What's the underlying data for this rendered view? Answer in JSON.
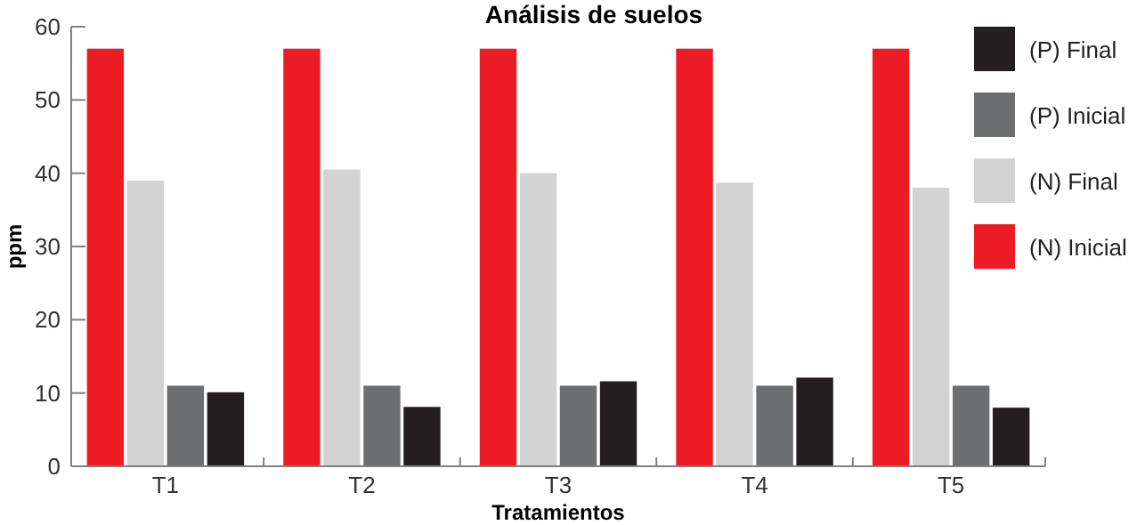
{
  "chart_data": {
    "type": "bar",
    "title": "Análisis de suelos",
    "xlabel": "Tratamientos",
    "ylabel": "ppm",
    "categories": [
      "T1",
      "T2",
      "T3",
      "T4",
      "T5"
    ],
    "series": [
      {
        "name": "(N) Inicial",
        "color": "#ed1c24",
        "values": [
          57,
          57,
          57,
          57,
          57
        ]
      },
      {
        "name": "(N) Final",
        "color": "#d3d3d3",
        "values": [
          39,
          40.5,
          40,
          38.7,
          38
        ]
      },
      {
        "name": "(P) Inicial",
        "color": "#6d6e70",
        "values": [
          11,
          11,
          11,
          11,
          11
        ]
      },
      {
        "name": "(P) Final",
        "color": "#231f20",
        "values": [
          10.1,
          8.1,
          11.6,
          12.1,
          8
        ]
      }
    ],
    "ylim": [
      0,
      60
    ],
    "yticks": [
      0,
      10,
      20,
      30,
      40,
      50,
      60
    ],
    "grid": false,
    "legend": "right"
  }
}
